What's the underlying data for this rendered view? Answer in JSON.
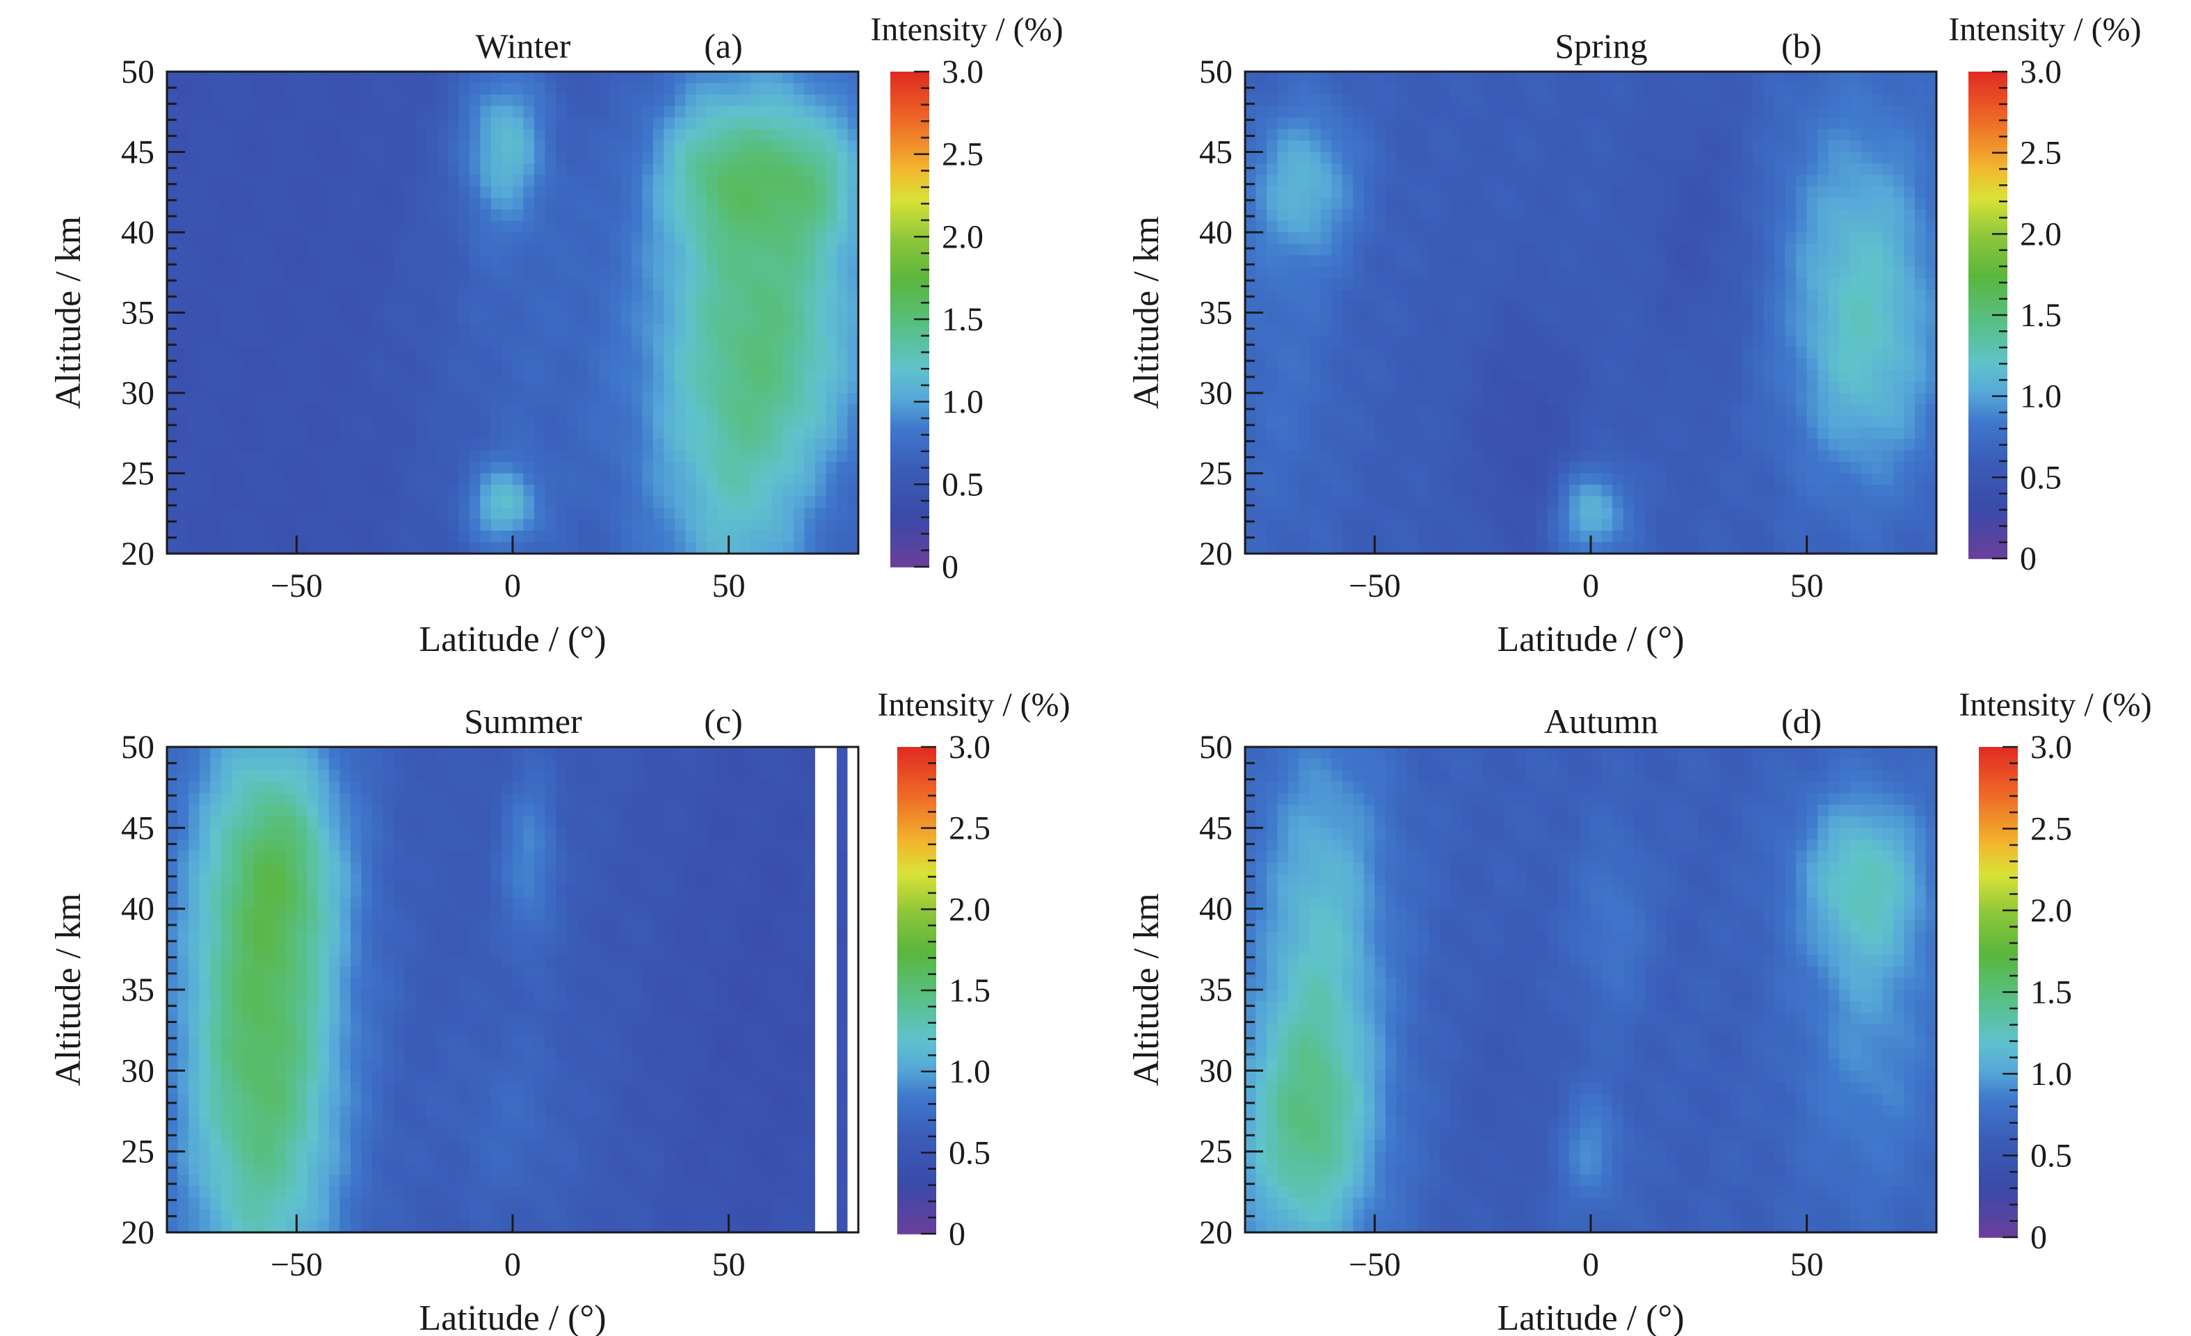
{
  "colors": {
    "stops": [
      [
        0.0,
        "#6a3f9a"
      ],
      [
        0.1,
        "#3a4aa8"
      ],
      [
        0.2,
        "#3a5db8"
      ],
      [
        0.28,
        "#3f78cc"
      ],
      [
        0.34,
        "#56a8d8"
      ],
      [
        0.4,
        "#60c2cc"
      ],
      [
        0.48,
        "#58c08a"
      ],
      [
        0.58,
        "#5ab63c"
      ],
      [
        0.66,
        "#8cc63a"
      ],
      [
        0.74,
        "#d8e236"
      ],
      [
        0.8,
        "#f2b82e"
      ],
      [
        0.9,
        "#ee6a26"
      ],
      [
        1.0,
        "#e02a22"
      ]
    ],
    "axis": "#1a1a1a"
  },
  "chart_data": [
    {
      "id": "a",
      "type": "heatmap",
      "title": "Winter",
      "panel_label": "(a)",
      "xlabel": "Latitude / (°)",
      "ylabel": "Altitude / km",
      "xlim": [
        -80,
        80
      ],
      "ylim": [
        20,
        50
      ],
      "x_ticks": [
        -50,
        0,
        50
      ],
      "y_ticks": [
        20,
        25,
        30,
        35,
        40,
        45,
        50
      ],
      "colorbar": {
        "label": "Intensity / (%)",
        "range": [
          0,
          3.0
        ],
        "ticks": [
          "0",
          "0.5",
          "1.0",
          "1.5",
          "2.0",
          "2.5",
          "3.0"
        ]
      },
      "base": 0.45,
      "features": [
        {
          "lat": -2,
          "alt": 45.5,
          "slat": 7,
          "salt": 3.5,
          "amp": 0.55
        },
        {
          "lat": -2,
          "alt": 23,
          "slat": 6,
          "salt": 1.8,
          "amp": 0.55
        },
        {
          "lat": 0,
          "alt": 33,
          "slat": 16,
          "salt": 14,
          "amp": 0.2
        },
        {
          "lat": 57,
          "alt": 32,
          "slat": 20,
          "salt": 14,
          "amp": 1.05
        },
        {
          "lat": 68,
          "alt": 43.5,
          "slat": 11,
          "salt": 3,
          "amp": 0.4
        },
        {
          "lat": 45,
          "alt": 44,
          "slat": 9,
          "salt": 3,
          "amp": 0.35
        },
        {
          "lat": 72,
          "alt": 22,
          "slat": 12,
          "salt": 5,
          "amp": -0.25
        }
      ]
    },
    {
      "id": "b",
      "type": "heatmap",
      "title": "Spring",
      "panel_label": "(b)",
      "xlabel": "Latitude / (°)",
      "ylabel": "Altitude / km",
      "xlim": [
        -80,
        80
      ],
      "ylim": [
        20,
        50
      ],
      "x_ticks": [
        -50,
        0,
        50
      ],
      "y_ticks": [
        20,
        25,
        30,
        35,
        40,
        45,
        50
      ],
      "colorbar": {
        "label": "Intensity / (%)",
        "range": [
          0,
          3.0
        ],
        "ticks": [
          "0",
          "0.5",
          "1.0",
          "1.5",
          "2.0",
          "2.5",
          "3.0"
        ]
      },
      "base": 0.6,
      "features": [
        {
          "lat": -66,
          "alt": 43,
          "slat": 9,
          "salt": 3.5,
          "amp": 0.45
        },
        {
          "lat": -72,
          "alt": 32,
          "slat": 10,
          "salt": 9,
          "amp": 0.15
        },
        {
          "lat": 0,
          "alt": 22.5,
          "slat": 6,
          "salt": 2,
          "amp": 0.55
        },
        {
          "lat": 62,
          "alt": 40,
          "slat": 14,
          "salt": 7,
          "amp": 0.4
        },
        {
          "lat": 64,
          "alt": 31,
          "slat": 13,
          "salt": 6,
          "amp": 0.4
        },
        {
          "lat": -15,
          "alt": 27,
          "slat": 10,
          "salt": 6,
          "amp": -0.2
        },
        {
          "lat": 25,
          "alt": 40,
          "slat": 10,
          "salt": 6,
          "amp": -0.15
        }
      ]
    },
    {
      "id": "c",
      "type": "heatmap",
      "title": "Summer",
      "panel_label": "(c)",
      "xlabel": "Latitude / (°)",
      "ylabel": "Altitude / km",
      "xlim": [
        -80,
        80
      ],
      "ylim": [
        20,
        50
      ],
      "x_ticks": [
        -50,
        0,
        50
      ],
      "y_ticks": [
        20,
        25,
        30,
        35,
        40,
        45,
        50
      ],
      "colorbar": {
        "label": "Intensity / (%)",
        "range": [
          0,
          3.0
        ],
        "ticks": [
          "0",
          "0.5",
          "1.0",
          "1.5",
          "2.0",
          "2.5",
          "3.0"
        ]
      },
      "base": 0.55,
      "features": [
        {
          "lat": -58,
          "alt": 33,
          "slat": 14,
          "salt": 14,
          "amp": 1.05
        },
        {
          "lat": -52,
          "alt": 43,
          "slat": 10,
          "salt": 4,
          "amp": 0.3
        },
        {
          "lat": 4,
          "alt": 43,
          "slat": 5,
          "salt": 4,
          "amp": 0.35
        },
        {
          "lat": 0,
          "alt": 27,
          "slat": 12,
          "salt": 5,
          "amp": 0.15
        },
        {
          "lat": 60,
          "alt": 35,
          "slat": 22,
          "salt": 20,
          "amp": -0.15
        }
      ],
      "missing_bands": [
        [
          71,
          75
        ],
        [
          78,
          80
        ]
      ]
    },
    {
      "id": "d",
      "type": "heatmap",
      "title": "Autumn",
      "panel_label": "(d)",
      "xlabel": "Latitude / (°)",
      "ylabel": "Altitude / km",
      "xlim": [
        -80,
        80
      ],
      "ylim": [
        20,
        50
      ],
      "x_ticks": [
        -50,
        0,
        50
      ],
      "y_ticks": [
        20,
        25,
        30,
        35,
        40,
        45,
        50
      ],
      "colorbar": {
        "label": "Intensity / (%)",
        "range": [
          0,
          3.0
        ],
        "ticks": [
          "0",
          "0.5",
          "1.0",
          "1.5",
          "2.0",
          "2.5",
          "3.0"
        ]
      },
      "base": 0.62,
      "features": [
        {
          "lat": -66,
          "alt": 26,
          "slat": 12,
          "salt": 6,
          "amp": 0.75
        },
        {
          "lat": -62,
          "alt": 40,
          "slat": 11,
          "salt": 8,
          "amp": 0.5
        },
        {
          "lat": 63,
          "alt": 42,
          "slat": 11,
          "salt": 4,
          "amp": 0.55
        },
        {
          "lat": 65,
          "alt": 32,
          "slat": 12,
          "salt": 7,
          "amp": 0.3
        },
        {
          "lat": 0,
          "alt": 25,
          "slat": 5,
          "salt": 2.5,
          "amp": 0.3
        },
        {
          "lat": 5,
          "alt": 39,
          "slat": 6,
          "salt": 4,
          "amp": 0.2
        },
        {
          "lat": -20,
          "alt": 28,
          "slat": 8,
          "salt": 6,
          "amp": -0.1
        }
      ]
    }
  ]
}
